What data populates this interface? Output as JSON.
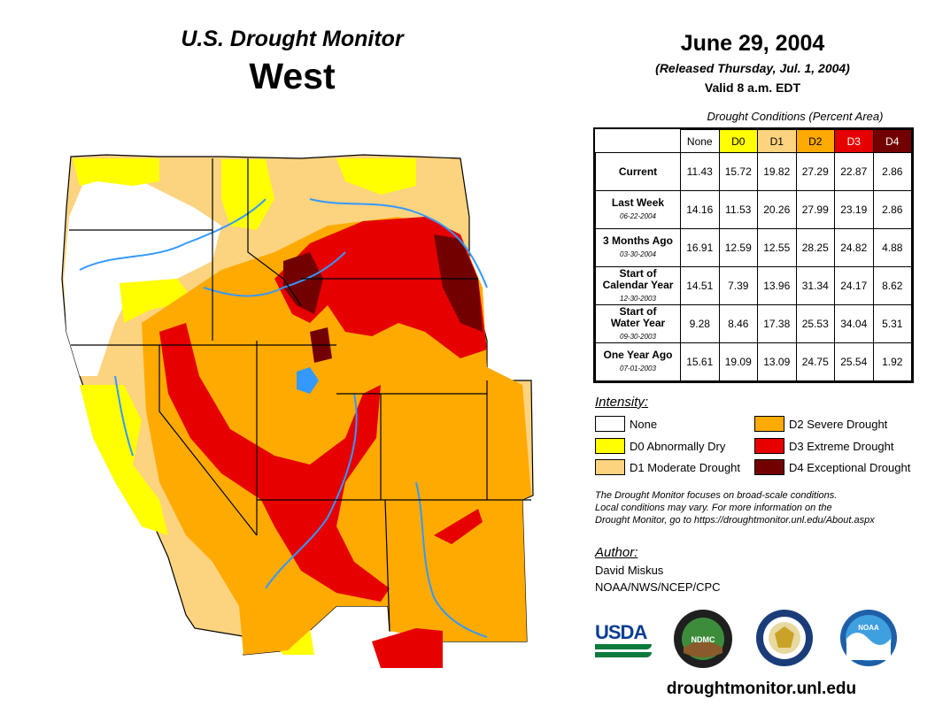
{
  "header": {
    "product": "U.S. Drought Monitor",
    "region": "West",
    "date": "June 29, 2004",
    "released": "(Released Thursday, Jul. 1, 2004)",
    "valid": "Valid 8 a.m. EDT"
  },
  "table": {
    "caption": "Drought Conditions (Percent Area)",
    "columns": [
      "None",
      "D0",
      "D1",
      "D2",
      "D3",
      "D4"
    ],
    "column_colors": [
      "#ffffff",
      "#ffff00",
      "#fcd37f",
      "#ffaa00",
      "#e60000",
      "#730000"
    ],
    "rows": [
      {
        "label": "Current",
        "date": "",
        "values": [
          "11.43",
          "15.72",
          "19.82",
          "27.29",
          "22.87",
          "2.86"
        ]
      },
      {
        "label": "Last Week",
        "date": "06-22-2004",
        "values": [
          "14.16",
          "11.53",
          "20.26",
          "27.99",
          "23.19",
          "2.86"
        ]
      },
      {
        "label": "3 Months Ago",
        "date": "03-30-2004",
        "values": [
          "16.91",
          "12.59",
          "12.55",
          "28.25",
          "24.82",
          "4.88"
        ]
      },
      {
        "label_lines": [
          "Start of",
          "Calendar Year"
        ],
        "date": "12-30-2003",
        "values": [
          "14.51",
          "7.39",
          "13.96",
          "31.34",
          "24.17",
          "8.62"
        ]
      },
      {
        "label_lines": [
          "Start of",
          "Water Year"
        ],
        "date": "09-30-2003",
        "values": [
          "9.28",
          "8.46",
          "17.38",
          "25.53",
          "34.04",
          "5.31"
        ]
      },
      {
        "label": "One Year Ago",
        "date": "07-01-2003",
        "values": [
          "15.61",
          "19.09",
          "13.09",
          "24.75",
          "25.54",
          "1.92"
        ]
      }
    ]
  },
  "legend": {
    "title": "Intensity:",
    "items": [
      {
        "label": "None",
        "color": "#ffffff"
      },
      {
        "label": "D0 Abnormally Dry",
        "color": "#ffff00"
      },
      {
        "label": "D1 Moderate Drought",
        "color": "#fcd37f"
      },
      {
        "label": "D2 Severe Drought",
        "color": "#ffaa00"
      },
      {
        "label": "D3 Extreme Drought",
        "color": "#e60000"
      },
      {
        "label": "D4 Exceptional Drought",
        "color": "#730000"
      }
    ]
  },
  "note": {
    "line1": "The Drought Monitor focuses on broad-scale conditions.",
    "line2": "Local conditions may vary. For more information on the",
    "line3": "Drought Monitor, go to https://droughtmonitor.unl.edu/About.aspx"
  },
  "author": {
    "title": "Author:",
    "name": "David Miskus",
    "org": "NOAA/NWS/NCEP/CPC"
  },
  "logos": {
    "usda": "USDA",
    "ndmc": "NDMC",
    "noaa": "NOAA"
  },
  "site_url": "droughtmonitor.unl.edu",
  "map_colors": {
    "none": "#ffffff",
    "d0": "#ffff00",
    "d1": "#fcd37f",
    "d2": "#ffaa00",
    "d3": "#e60000",
    "d4": "#730000",
    "water": "#3399ff",
    "boundary": "#000000"
  }
}
